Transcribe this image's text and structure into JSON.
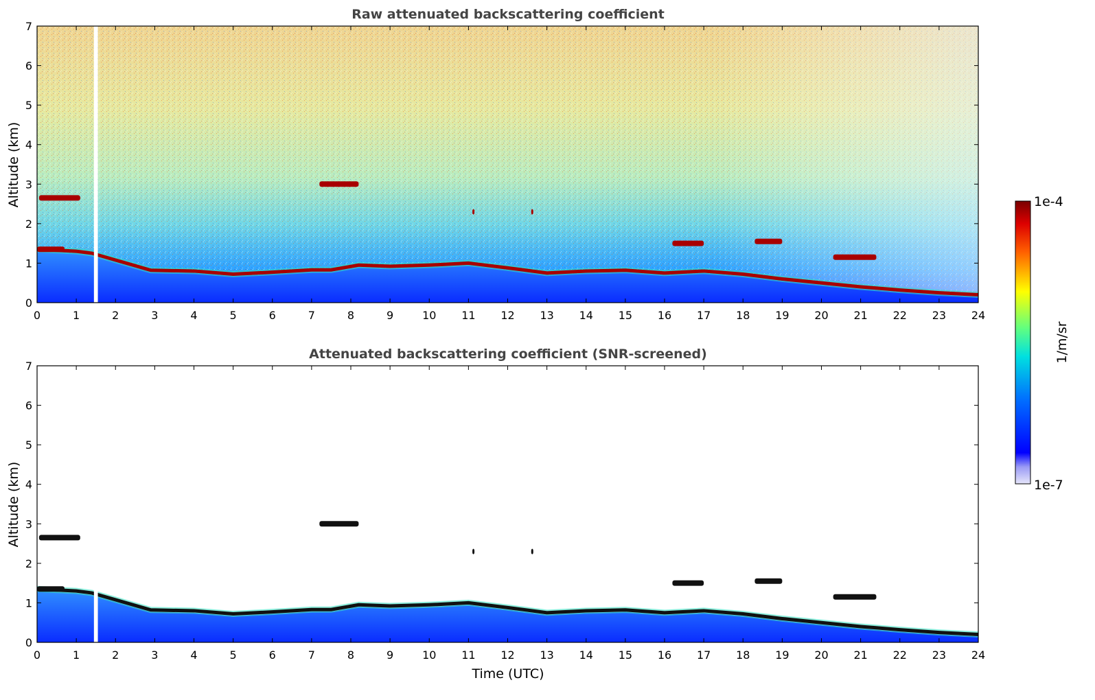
{
  "chart_data": [
    {
      "type": "heatmap",
      "title": "Raw attenuated backscattering coefficient",
      "xlabel": "",
      "ylabel": "Altitude (km)",
      "xlim": [
        0,
        24
      ],
      "ylim": [
        0,
        7
      ],
      "x_ticks": [
        "0",
        "1",
        "2",
        "3",
        "4",
        "5",
        "6",
        "7",
        "8",
        "9",
        "10",
        "11",
        "12",
        "13",
        "14",
        "15",
        "16",
        "17",
        "18",
        "19",
        "20",
        "21",
        "22",
        "23",
        "24"
      ],
      "y_ticks": [
        "0",
        "1",
        "2",
        "3",
        "4",
        "5",
        "6",
        "7"
      ],
      "data_gap": {
        "time_start": 1.45,
        "time_end": 1.55
      },
      "boundary_layer_top_km": [
        [
          0,
          1.35
        ],
        [
          1.0,
          1.3
        ],
        [
          1.4,
          1.25
        ],
        [
          2.9,
          0.82
        ],
        [
          4,
          0.8
        ],
        [
          5,
          0.72
        ],
        [
          6,
          0.77
        ],
        [
          7,
          0.83
        ],
        [
          7.5,
          0.83
        ],
        [
          8.2,
          0.95
        ],
        [
          9,
          0.92
        ],
        [
          10,
          0.95
        ],
        [
          11,
          1.0
        ],
        [
          12,
          0.88
        ],
        [
          13,
          0.75
        ],
        [
          14,
          0.8
        ],
        [
          15,
          0.82
        ],
        [
          16,
          0.75
        ],
        [
          17,
          0.8
        ],
        [
          18,
          0.72
        ],
        [
          19,
          0.6
        ],
        [
          20,
          0.5
        ],
        [
          21,
          0.4
        ],
        [
          22,
          0.32
        ],
        [
          23,
          0.25
        ],
        [
          24,
          0.2
        ]
      ],
      "cloud_layers_km": [
        {
          "time_start": 0.05,
          "time_end": 1.1,
          "altitude": 2.65
        },
        {
          "time_start": 0.0,
          "time_end": 0.7,
          "altitude": 1.35
        },
        {
          "time_start": 7.2,
          "time_end": 8.2,
          "altitude": 3.0
        },
        {
          "time_start": 11.1,
          "time_end": 11.15,
          "altitude": 2.3
        },
        {
          "time_start": 12.6,
          "time_end": 12.65,
          "altitude": 2.3
        },
        {
          "time_start": 16.2,
          "time_end": 17.0,
          "altitude": 1.5
        },
        {
          "time_start": 18.3,
          "time_end": 19.0,
          "altitude": 1.55
        },
        {
          "time_start": 20.3,
          "time_end": 21.4,
          "altitude": 1.15
        }
      ],
      "colorscale": "jet",
      "log_scale": true
    },
    {
      "type": "heatmap",
      "title": "Attenuated backscattering coefficient (SNR-screened)",
      "xlabel": "Time (UTC)",
      "ylabel": "Altitude (km)",
      "xlim": [
        0,
        24
      ],
      "ylim": [
        0,
        7
      ],
      "x_ticks": [
        "0",
        "1",
        "2",
        "3",
        "4",
        "5",
        "6",
        "7",
        "8",
        "9",
        "10",
        "11",
        "12",
        "13",
        "14",
        "15",
        "16",
        "17",
        "18",
        "19",
        "20",
        "21",
        "22",
        "23",
        "24"
      ],
      "y_ticks": [
        "0",
        "1",
        "2",
        "3",
        "4",
        "5",
        "6",
        "7"
      ],
      "data_gap": {
        "time_start": 1.45,
        "time_end": 1.55
      },
      "colorscale": "jet",
      "log_scale": true
    }
  ],
  "colorbar": {
    "max_label": "1e-4",
    "min_label": "1e-7",
    "unit_label": "1/m/sr",
    "colors": [
      "#e6e6fa",
      "#b4b4f0",
      "#8080ff",
      "#0000ff",
      "#0050ff",
      "#00a0ff",
      "#00e0e0",
      "#00ff90",
      "#a0ff30",
      "#ffff00",
      "#ffb000",
      "#ff5000",
      "#dd0000",
      "#800000"
    ]
  }
}
